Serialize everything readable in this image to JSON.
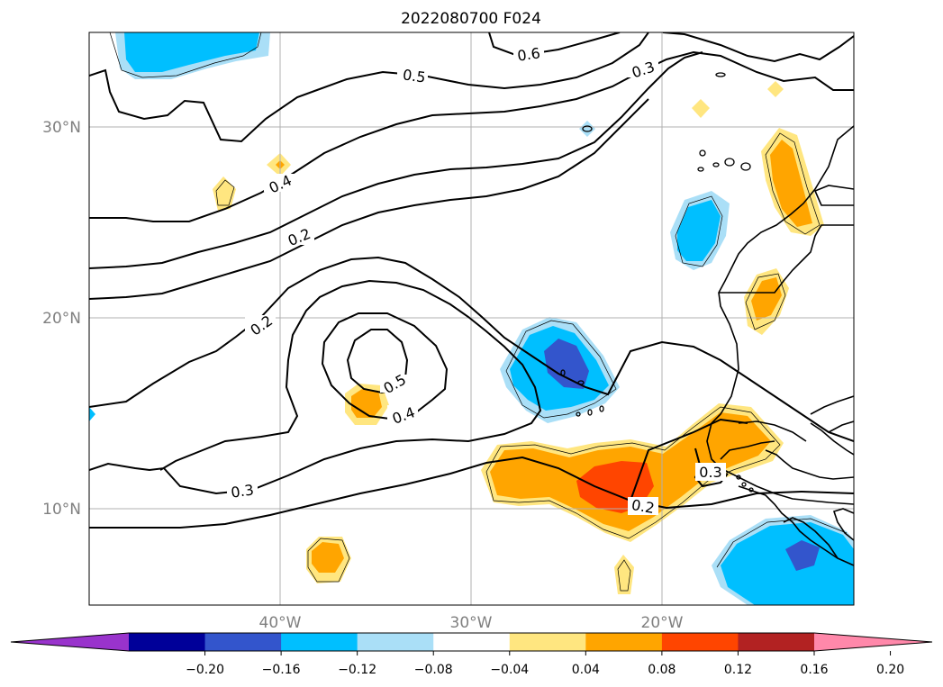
{
  "title": "2022080700 F024",
  "map": {
    "lat_labels": [
      "30°N",
      "20°N",
      "10°N"
    ],
    "lon_labels": [
      "40°W",
      "30°W",
      "20°W"
    ],
    "contour_labels": [
      "0.6",
      "0.5",
      "0.3",
      "0.4",
      "0.2",
      "0.2",
      "0.5",
      "0.4",
      "0.3",
      "0.3",
      "0.2"
    ]
  },
  "colorbar": {
    "ticks": [
      "−0.20",
      "−0.16",
      "−0.12",
      "−0.08",
      "−0.04",
      "0.04",
      "0.08",
      "0.12",
      "0.16",
      "0.20"
    ],
    "colors": [
      "#9933cc",
      "#000099",
      "#3355cc",
      "#00bfff",
      "#aadff7",
      "#ffffff",
      "#ffe680",
      "#ffa500",
      "#ff4500",
      "#b22222",
      "#ff88aa"
    ],
    "extend": "both"
  },
  "fill_colors": {
    "neg_light": "#aadff7",
    "neg_mid": "#00bfff",
    "neg_dark": "#3355cc",
    "pos_light": "#ffe680",
    "pos_mid": "#ffa500",
    "pos_dark": "#ff4500"
  }
}
